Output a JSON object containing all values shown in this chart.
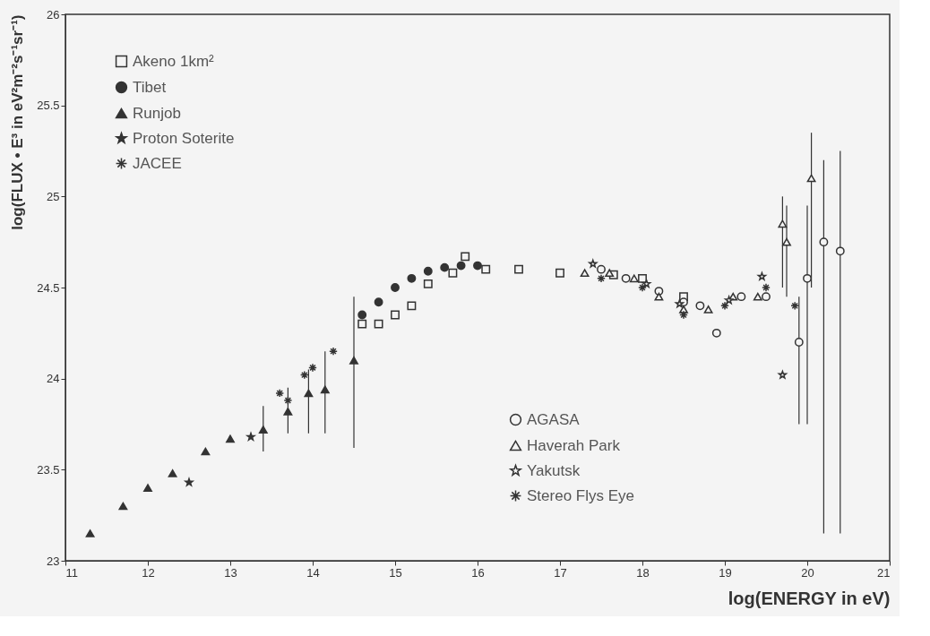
{
  "chart_data": {
    "type": "scatter",
    "xlabel": "log(ENERGY in eV)",
    "ylabel": "log(FLUX • E³ in eV²m⁻²s⁻¹sr⁻¹)",
    "xlim": [
      11,
      21
    ],
    "xticks": [
      11,
      12,
      13,
      14,
      15,
      16,
      17,
      18,
      19,
      20,
      21
    ],
    "ylim": [
      23,
      26
    ],
    "yticks": [
      23,
      23.5,
      24,
      24.5,
      25,
      25.5,
      26
    ],
    "grid": false,
    "legend": [
      "top left",
      "top left",
      "top left",
      "top left",
      "top left",
      "bottom right",
      "bottom right",
      "bottom right",
      "bottom right"
    ],
    "series": [
      {
        "name": "Akeno 1km²",
        "color": "#333333",
        "marker": "square",
        "x": [
          14.6,
          14.8,
          15.0,
          15.2,
          15.4,
          15.7,
          15.85,
          16.1,
          16.5,
          17.0,
          17.65,
          18.0,
          18.5
        ],
        "values": [
          24.3,
          24.3,
          24.35,
          24.4,
          24.52,
          24.58,
          24.67,
          24.6,
          24.6,
          24.58,
          24.57,
          24.55,
          24.45
        ]
      },
      {
        "name": "Tibet",
        "color": "#333333",
        "marker": "circle",
        "x": [
          14.6,
          14.8,
          15.0,
          15.2,
          15.4,
          15.6,
          15.8,
          16.0
        ],
        "values": [
          24.35,
          24.42,
          24.5,
          24.55,
          24.59,
          24.61,
          24.62,
          24.62
        ]
      },
      {
        "name": "Runjob",
        "color": "#333333",
        "marker": "triangle",
        "x": [
          11.3,
          11.7,
          12.0,
          12.3,
          12.7,
          13.0,
          13.4,
          13.7,
          13.95,
          14.15,
          14.5
        ],
        "values": [
          23.15,
          23.3,
          23.4,
          23.48,
          23.6,
          23.67,
          23.72,
          23.82,
          23.92,
          23.94,
          24.1
        ],
        "errors": [
          null,
          null,
          null,
          null,
          null,
          null,
          [
            23.6,
            23.85
          ],
          [
            23.7,
            23.95
          ],
          [
            23.7,
            24.05
          ],
          [
            23.7,
            24.15
          ],
          [
            23.62,
            24.45
          ]
        ]
      },
      {
        "name": "Proton Soterite",
        "color": "#333333",
        "marker": "star",
        "x": [
          12.5,
          13.25
        ],
        "values": [
          23.43,
          23.68
        ]
      },
      {
        "name": "JACEE",
        "color": "#333333",
        "marker": "cross",
        "x": [
          13.6,
          13.7,
          13.9,
          14.0,
          14.25
        ],
        "values": [
          23.92,
          23.88,
          24.02,
          24.06,
          24.15
        ]
      },
      {
        "name": "AGASA",
        "color": "#333333",
        "marker": "circle",
        "x": [
          17.5,
          17.8,
          18.2,
          18.5,
          18.7,
          18.9,
          19.2,
          19.5,
          19.9,
          20.0,
          20.2,
          20.4
        ],
        "values": [
          24.6,
          24.55,
          24.48,
          24.42,
          24.4,
          24.25,
          24.45,
          24.45,
          24.2,
          24.55,
          24.75,
          24.7
        ],
        "errors": [
          null,
          null,
          null,
          null,
          null,
          null,
          null,
          null,
          [
            23.75,
            24.45
          ],
          [
            23.75,
            24.95
          ],
          [
            23.15,
            25.2
          ],
          [
            23.15,
            25.25
          ]
        ]
      },
      {
        "name": "Haverah Park",
        "color": "#333333",
        "marker": "triangle",
        "x": [
          17.3,
          17.6,
          17.9,
          18.2,
          18.5,
          18.8,
          19.1,
          19.4,
          19.7,
          19.75,
          20.05
        ],
        "values": [
          24.58,
          24.58,
          24.55,
          24.45,
          24.38,
          24.38,
          24.45,
          24.45,
          24.85,
          24.75,
          25.1
        ],
        "errors": [
          null,
          null,
          null,
          null,
          null,
          null,
          null,
          null,
          [
            24.5,
            25.0
          ],
          [
            24.45,
            24.95
          ],
          [
            24.5,
            25.35
          ]
        ]
      },
      {
        "name": "Yakutsk",
        "color": "#333333",
        "marker": "star",
        "x": [
          17.4,
          18.05,
          18.45,
          19.05,
          19.45,
          19.7
        ],
        "values": [
          24.63,
          24.52,
          24.41,
          24.43,
          24.56,
          24.02
        ]
      },
      {
        "name": "Stereo Flys Eye",
        "color": "#333333",
        "marker": "cross",
        "x": [
          17.5,
          18.0,
          18.5,
          19.0,
          19.5,
          19.85
        ],
        "values": [
          24.55,
          24.5,
          24.35,
          24.4,
          24.5,
          24.4
        ]
      }
    ]
  }
}
